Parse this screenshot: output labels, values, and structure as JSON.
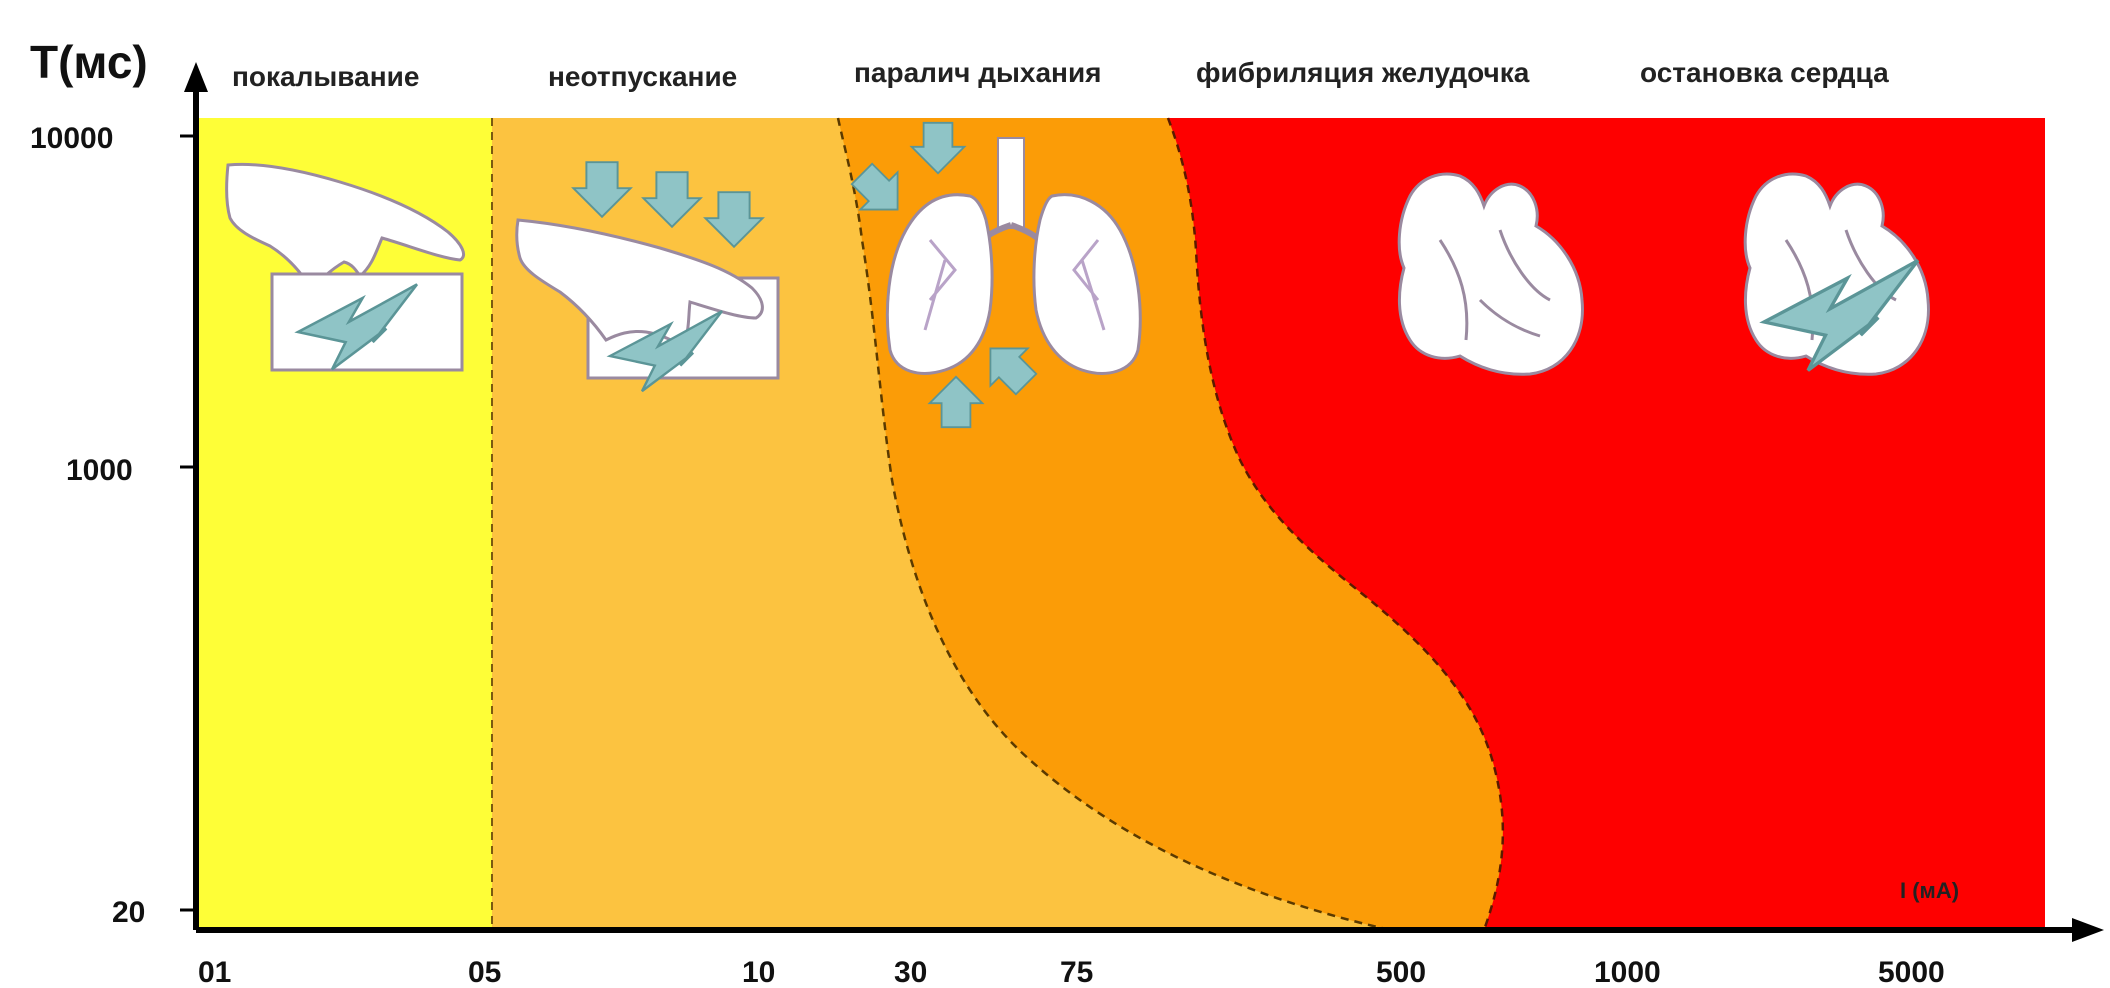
{
  "chart_data": {
    "type": "area",
    "ylabel": "T(мс)",
    "xlabel": "I (мА)",
    "y_ticks": [
      "10000",
      "1000",
      "20"
    ],
    "x_ticks": [
      "01",
      "05",
      "10",
      "30",
      "75",
      "500",
      "1000",
      "5000"
    ],
    "zones": [
      {
        "name": "покалывание",
        "color": "#fefe37",
        "icon": "hand-touching-electrified-box-icon"
      },
      {
        "name": "неотпускание",
        "color": "#fcc340",
        "icon": "hand-gripping-box-with-pressure-arrows-icon"
      },
      {
        "name": "паралич дыхания",
        "color": "#fb9c07",
        "icon": "lungs-with-arrows-icon"
      },
      {
        "name": "фибриляция желудочка",
        "color": "#fe0000",
        "icon": "heart-icon"
      },
      {
        "name": "остановка сердца",
        "color": "#fe0000",
        "icon": "heart-with-lightning-icon"
      }
    ],
    "grid": false,
    "legend": "none"
  }
}
